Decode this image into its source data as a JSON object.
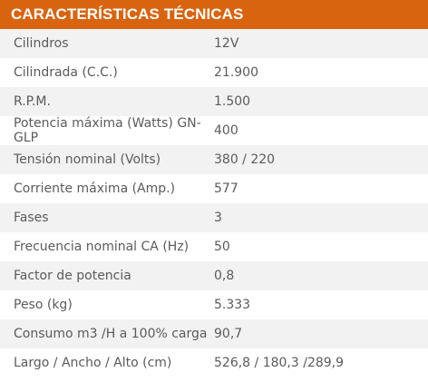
{
  "title": "CARACTERÍSTICAS TÉCNICAS",
  "rows": [
    {
      "label": "Cilindros",
      "value": "12V"
    },
    {
      "label": "Cilindrada (C.C.)",
      "value": "21.900"
    },
    {
      "label": "R.P.M.",
      "value": "1.500"
    },
    {
      "label": "Potencia máxima (Watts) GN-GLP",
      "value": "400"
    },
    {
      "label": "Tensión nominal (Volts)",
      "value": "380 / 220"
    },
    {
      "label": "Corriente máxima (Amp.)",
      "value": "577"
    },
    {
      "label": "Fases",
      "value": "3"
    },
    {
      "label": "Frecuencia nominal CA (Hz)",
      "value": "50"
    },
    {
      "label": "Factor de potencia",
      "value": "0,8"
    },
    {
      "label": "Peso (kg)",
      "value": "5.333"
    },
    {
      "label": "Consumo m3 /H a 100% carga",
      "value": "90,7"
    },
    {
      "label": "Largo / Ancho / Alto (cm)",
      "value": "526,8 / 180,3 /289,9"
    }
  ],
  "colors": {
    "header_bg": "#d9640f",
    "header_text": "#ffffff",
    "row_alt_bg": "#f2f2f2",
    "row_bg": "#ffffff",
    "text": "#5b5b5b"
  }
}
